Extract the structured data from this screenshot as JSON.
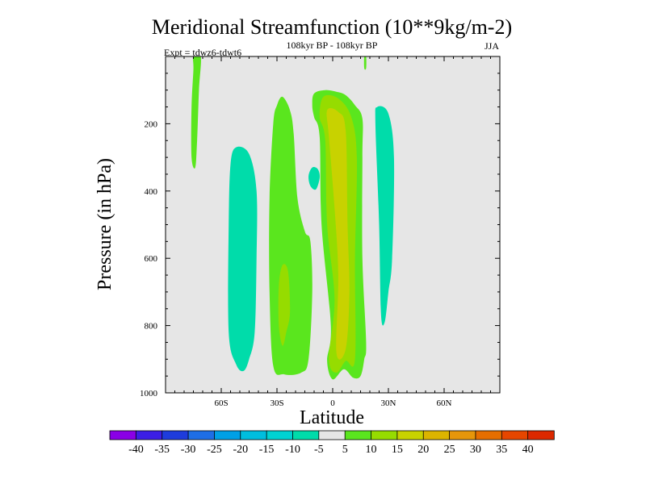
{
  "chart_data": {
    "type": "contour",
    "title": "Meridional Streamfunction (10**9kg/m-2)",
    "subtitle": "108kyr BP - 108kyr BP",
    "experiment": "Expt = tdwz6-tdwt6",
    "season": "JJA",
    "xlabel": "Latitude",
    "ylabel": "Pressure (in hPa)",
    "xlim": [
      -90,
      90
    ],
    "ylim": [
      0,
      1000
    ],
    "x_ticks": [
      {
        "value": -60,
        "label": "60S"
      },
      {
        "value": -30,
        "label": "30S"
      },
      {
        "value": 0,
        "label": "0"
      },
      {
        "value": 30,
        "label": "30N"
      },
      {
        "value": 60,
        "label": "60N"
      }
    ],
    "y_ticks": [
      {
        "value": 200,
        "label": "200"
      },
      {
        "value": 400,
        "label": "400"
      },
      {
        "value": 600,
        "label": "600"
      },
      {
        "value": 800,
        "label": "800"
      },
      {
        "value": 1000,
        "label": "1000"
      }
    ],
    "background_level_color": "#e6e6e6",
    "colorbar": {
      "colors": [
        "#8a00e6",
        "#3c1ee6",
        "#1e3cdc",
        "#1e6ee6",
        "#00a0e6",
        "#00bede",
        "#00d2d2",
        "#00dcaa",
        "#e6e6e6",
        "#5ae61e",
        "#96dc00",
        "#c8d200",
        "#dcb400",
        "#e6960a",
        "#e66e00",
        "#e64600",
        "#dc2800"
      ],
      "labels": [
        "-40",
        "-35",
        "-30",
        "-25",
        "-20",
        "-15",
        "-10",
        "-5",
        "5",
        "10",
        "15",
        "20",
        "25",
        "30",
        "35",
        "40"
      ]
    },
    "regions": [
      {
        "name": "high-lat-sh-band",
        "level": 5,
        "color": "#5ae61e",
        "points": [
          [
            -75,
            0
          ],
          [
            -71,
            0
          ],
          [
            -72,
            100
          ],
          [
            -73,
            250
          ],
          [
            -74,
            330
          ],
          [
            -76,
            300
          ],
          [
            -76,
            150
          ],
          [
            -75,
            40
          ]
        ]
      },
      {
        "name": "sh-negative-cell",
        "level": -5,
        "color": "#00dcaa",
        "points": [
          [
            -52,
            270
          ],
          [
            -45,
            290
          ],
          [
            -41,
            400
          ],
          [
            -41,
            600
          ],
          [
            -42,
            820
          ],
          [
            -45,
            900
          ],
          [
            -48,
            935
          ],
          [
            -52,
            915
          ],
          [
            -56,
            820
          ],
          [
            -56,
            500
          ],
          [
            -55,
            320
          ]
        ]
      },
      {
        "name": "sh-positive-cell",
        "level": 5,
        "color": "#5ae61e",
        "points": [
          [
            -27,
            120
          ],
          [
            -23,
            160
          ],
          [
            -21,
            230
          ],
          [
            -19,
            420
          ],
          [
            -15,
            520
          ],
          [
            -12,
            550
          ],
          [
            -11,
            700
          ],
          [
            -13,
            900
          ],
          [
            -17,
            940
          ],
          [
            -26,
            945
          ],
          [
            -32,
            920
          ],
          [
            -34,
            700
          ],
          [
            -34,
            420
          ],
          [
            -32,
            200
          ],
          [
            -30,
            145
          ]
        ]
      },
      {
        "name": "sh-positive-core",
        "level": 10,
        "color": "#96dc00",
        "points": [
          [
            -27,
            620
          ],
          [
            -24,
            640
          ],
          [
            -23,
            760
          ],
          [
            -25,
            820
          ],
          [
            -27,
            860
          ],
          [
            -29,
            800
          ],
          [
            -29,
            680
          ]
        ]
      },
      {
        "name": "small-negative-blob",
        "level": -5,
        "color": "#00dcaa",
        "points": [
          [
            -11,
            330
          ],
          [
            -8,
            335
          ],
          [
            -7,
            360
          ],
          [
            -9,
            395
          ],
          [
            -12,
            385
          ],
          [
            -13,
            355
          ]
        ]
      },
      {
        "name": "equatorial-positive-cell",
        "level": 5,
        "color": "#5ae61e",
        "points": [
          [
            -10,
            110
          ],
          [
            -4,
            100
          ],
          [
            2,
            105
          ],
          [
            7,
            115
          ],
          [
            12,
            145
          ],
          [
            16,
            185
          ],
          [
            16,
            300
          ],
          [
            16,
            600
          ],
          [
            18,
            850
          ],
          [
            17,
            900
          ],
          [
            15,
            950
          ],
          [
            11,
            955
          ],
          [
            6,
            930
          ],
          [
            0,
            960
          ],
          [
            -3,
            905
          ],
          [
            -1,
            800
          ],
          [
            -6,
            500
          ],
          [
            -7,
            240
          ],
          [
            -10,
            180
          ],
          [
            -11,
            145
          ]
        ]
      },
      {
        "name": "equatorial-positive-mid",
        "level": 10,
        "color": "#96dc00",
        "points": [
          [
            -5,
            120
          ],
          [
            3,
            125
          ],
          [
            10,
            180
          ],
          [
            13,
            300
          ],
          [
            12,
            600
          ],
          [
            12,
            900
          ],
          [
            7,
            905
          ],
          [
            2,
            940
          ],
          [
            -2,
            900
          ],
          [
            1,
            720
          ],
          [
            -3,
            500
          ],
          [
            -4,
            250
          ],
          [
            -7,
            180
          ]
        ]
      },
      {
        "name": "equatorial-positive-inner",
        "level": 15,
        "color": "#c8d200",
        "points": [
          [
            -3,
            160
          ],
          [
            3,
            165
          ],
          [
            7,
            220
          ],
          [
            8,
            500
          ],
          [
            9,
            700
          ],
          [
            7,
            870
          ],
          [
            2,
            880
          ],
          [
            3,
            650
          ],
          [
            1,
            450
          ],
          [
            -2,
            240
          ]
        ]
      },
      {
        "name": "nh-negative-cell",
        "level": -5,
        "color": "#00dcaa",
        "points": [
          [
            24,
            150
          ],
          [
            30,
            170
          ],
          [
            33,
            300
          ],
          [
            32,
            600
          ],
          [
            30,
            700
          ],
          [
            28,
            790
          ],
          [
            26,
            765
          ],
          [
            25,
            500
          ],
          [
            23,
            200
          ]
        ]
      },
      {
        "name": "nh-top-sliver",
        "level": 5,
        "color": "#5ae61e",
        "points": [
          [
            17,
            0
          ],
          [
            18,
            0
          ],
          [
            18,
            35
          ],
          [
            17,
            35
          ]
        ]
      }
    ]
  }
}
